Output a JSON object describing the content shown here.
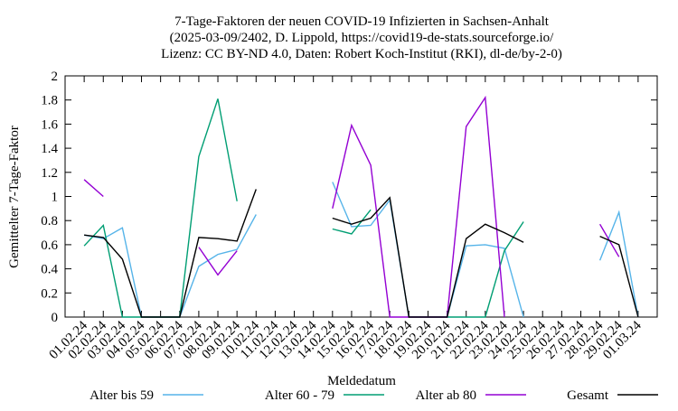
{
  "chart_data": {
    "type": "line",
    "title": [
      "7-Tage-Faktoren der neuen COVID-19 Infizierten in Sachsen-Anhalt",
      "(2025-03-09/2402, D. Lippold, https://covid19-de-stats.sourceforge.io/",
      "Lizenz: CC BY-ND 4.0, Daten: Robert Koch-Institut (RKI), dl-de/by-2-0)"
    ],
    "x_label": "Meldedatum",
    "y_label": "Gemittelter 7-Tage-Faktor",
    "categories": [
      "01.02.24",
      "02.02.24",
      "03.02.24",
      "04.02.24",
      "05.02.24",
      "06.02.24",
      "07.02.24",
      "08.02.24",
      "09.02.24",
      "10.02.24",
      "11.02.24",
      "12.02.24",
      "13.02.24",
      "14.02.24",
      "15.02.24",
      "16.02.24",
      "17.02.24",
      "18.02.24",
      "19.02.24",
      "20.02.24",
      "21.02.24",
      "22.02.24",
      "23.02.24",
      "24.02.24",
      "25.02.24",
      "26.02.24",
      "27.02.24",
      "28.02.24",
      "29.02.24",
      "01.03.24"
    ],
    "series": [
      {
        "name": "Alter bis 59",
        "color": "#56b4e9",
        "values": [
          0.68,
          0.65,
          0.74,
          0,
          0,
          0,
          0.42,
          0.52,
          0.56,
          0.85,
          null,
          null,
          null,
          1.12,
          0.75,
          0.76,
          0.97,
          0,
          0,
          0,
          0.59,
          0.6,
          0.57,
          0,
          null,
          null,
          null,
          0.47,
          0.87,
          0
        ]
      },
      {
        "name": "Alter 60 - 79",
        "color": "#009e73",
        "values": [
          0.59,
          0.76,
          0,
          0,
          0,
          0,
          1.33,
          1.81,
          0.96,
          null,
          null,
          null,
          null,
          0.73,
          0.69,
          0.89,
          null,
          null,
          null,
          0,
          0,
          0,
          0.55,
          0.79,
          null,
          null,
          null,
          null,
          null,
          null
        ]
      },
      {
        "name": "Alter ab 80",
        "color": "#9400d3",
        "values": [
          1.14,
          1.0,
          null,
          null,
          null,
          null,
          0.58,
          0.35,
          0.55,
          null,
          null,
          null,
          null,
          0.9,
          1.59,
          1.26,
          0,
          0,
          0,
          0,
          1.58,
          1.82,
          0,
          null,
          null,
          null,
          null,
          0.77,
          0.5,
          null
        ]
      },
      {
        "name": "Gesamt",
        "color": "#000000",
        "values": [
          0.68,
          0.66,
          0.48,
          0,
          0,
          0,
          0.66,
          0.65,
          0.63,
          1.06,
          null,
          null,
          null,
          0.82,
          0.77,
          0.82,
          0.99,
          0,
          0,
          0,
          0.65,
          0.77,
          0.7,
          0.62,
          null,
          null,
          null,
          0.67,
          0.6,
          0
        ]
      }
    ],
    "ylim": [
      0,
      2
    ],
    "yticks": [
      0,
      0.2,
      0.4,
      0.6,
      0.8,
      1,
      1.2,
      1.4,
      1.6,
      1.8,
      2
    ],
    "grid": false
  }
}
